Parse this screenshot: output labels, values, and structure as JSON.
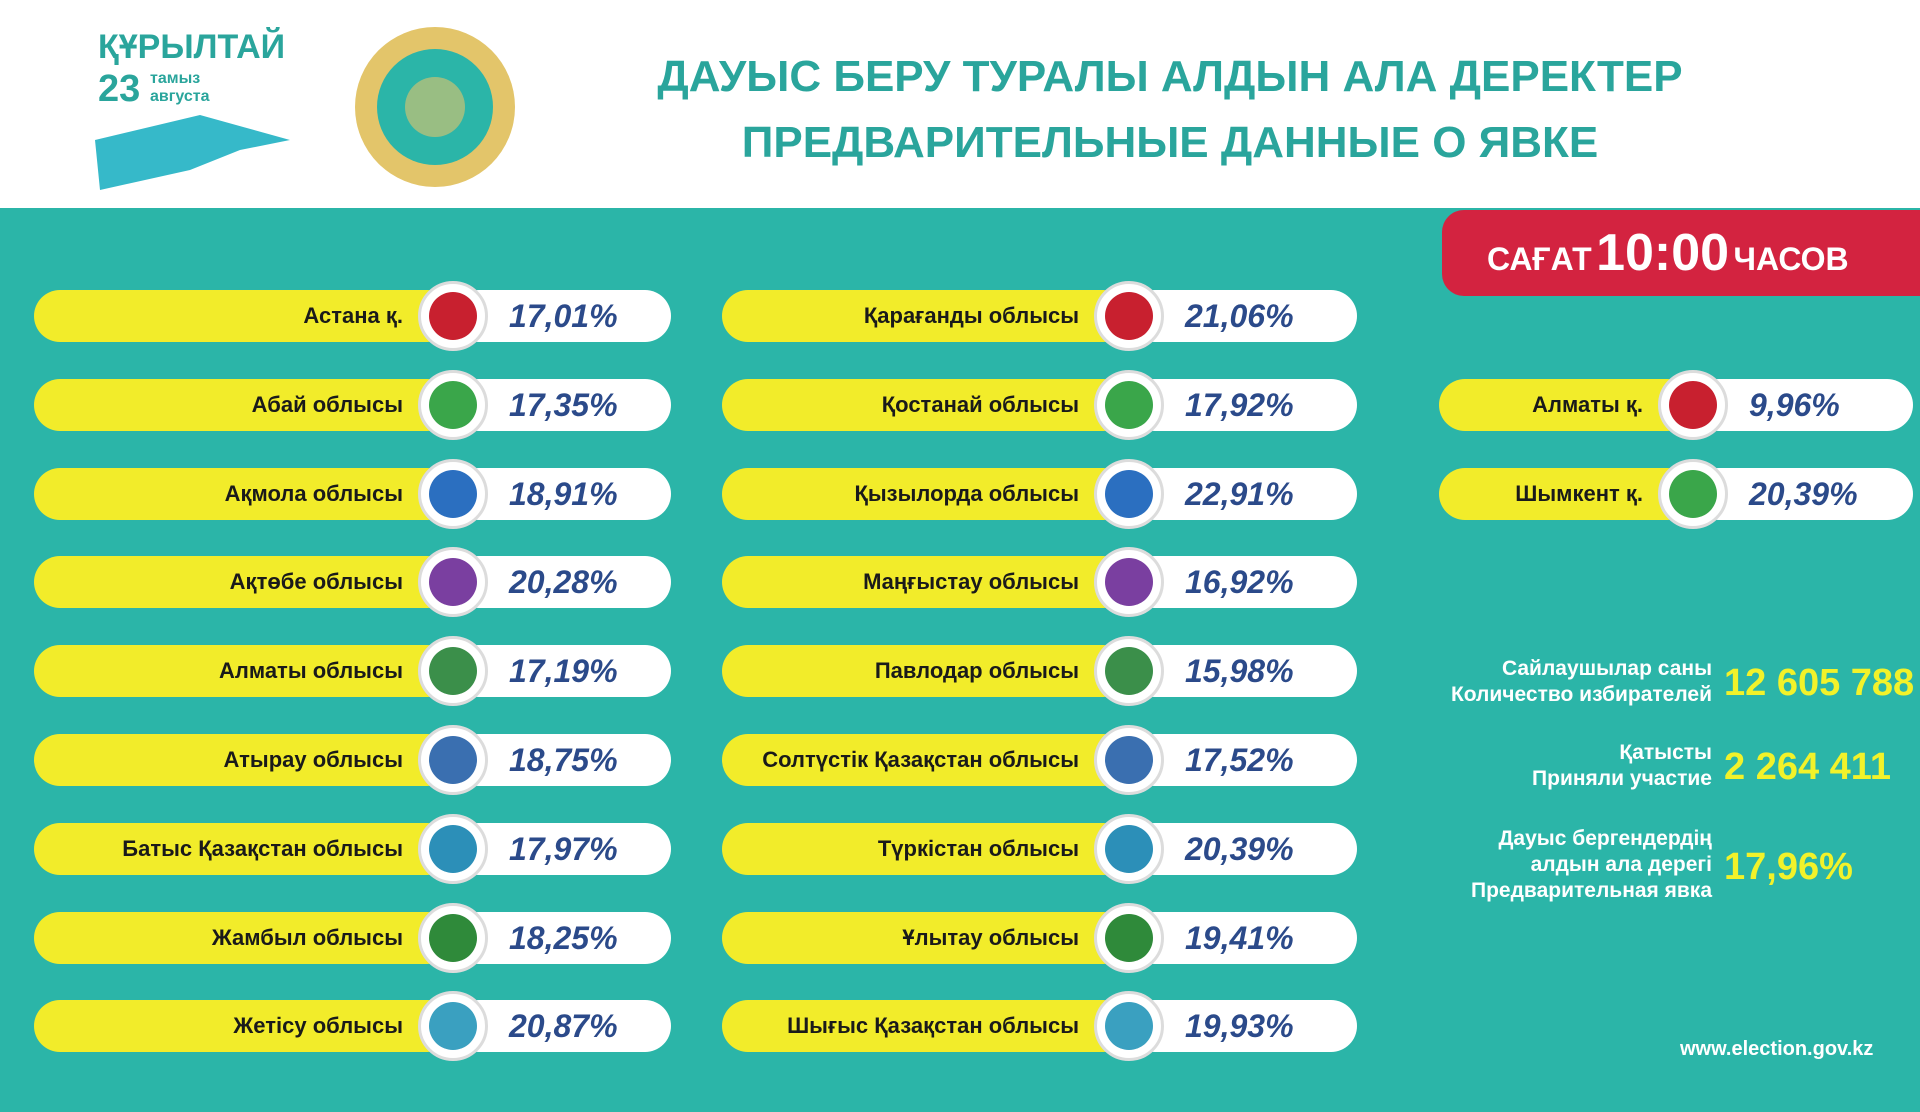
{
  "header": {
    "logo": {
      "title": "ҚҰРЫЛТАЙ",
      "day": "23",
      "month_kz": "тамыз",
      "month_ru": "августа"
    },
    "title_kz": "ДАУЫС БЕРУ ТУРАЛЫ АЛДЫН АЛА ДЕРЕКТЕР",
    "title_ru": "ПРЕДВАРИТЕЛЬНЫЕ ДАННЫЕ О ЯВКЕ"
  },
  "time_badge": {
    "prefix": "САҒАТ",
    "time": "10:00",
    "suffix": "ЧАСОВ"
  },
  "regions": {
    "column_1": [
      {
        "name": "Астана қ.",
        "turnout": "17,01%"
      },
      {
        "name": "Абай облысы",
        "turnout": "17,35%"
      },
      {
        "name": "Ақмола облысы",
        "turnout": "18,91%"
      },
      {
        "name": "Ақтөбе облысы",
        "turnout": "20,28%"
      },
      {
        "name": "Алматы облысы",
        "turnout": "17,19%"
      },
      {
        "name": "Атырау облысы",
        "turnout": "18,75%"
      },
      {
        "name": "Батыс Қазақстан облысы",
        "turnout": "17,97%"
      },
      {
        "name": "Жамбыл облысы",
        "turnout": "18,25%"
      },
      {
        "name": "Жетісу облысы",
        "turnout": "20,87%"
      }
    ],
    "column_2": [
      {
        "name": "Қарағанды облысы",
        "turnout": "21,06%"
      },
      {
        "name": "Қостанай облысы",
        "turnout": "17,92%"
      },
      {
        "name": "Қызылорда облысы",
        "turnout": "22,91%"
      },
      {
        "name": "Маңғыстау облысы",
        "turnout": "16,92%"
      },
      {
        "name": "Павлодар облысы",
        "turnout": "15,98%"
      },
      {
        "name": "Солтүстік Қазақстан облысы",
        "turnout": "17,52%"
      },
      {
        "name": "Түркістан облысы",
        "turnout": "20,39%"
      },
      {
        "name": "Ұлытау облысы",
        "turnout": "19,41%"
      },
      {
        "name": "Шығыс Қазақстан облысы",
        "turnout": "19,93%"
      }
    ],
    "column_3": [
      {
        "name": "Алматы қ.",
        "turnout": "9,96%"
      },
      {
        "name": "Шымкент қ.",
        "turnout": "20,39%"
      }
    ]
  },
  "stats": [
    {
      "label_kz": "Сайлаушылар саны",
      "label_ru": "Количество избирателей",
      "value": "12 605 788"
    },
    {
      "label_kz": "Қатысты",
      "label_ru": "Приняли участие",
      "value": "2 264 411"
    },
    {
      "label_kz": "Дауыс бергендердің алдын ала дерегі",
      "label_ru": "Предварительная явка",
      "value": "17,96%"
    }
  ],
  "website": "www.election.gov.kz"
}
